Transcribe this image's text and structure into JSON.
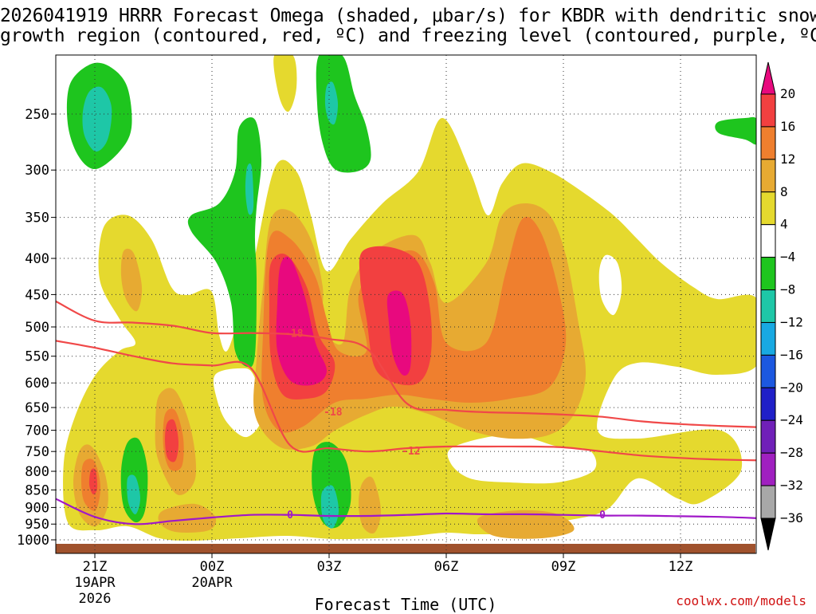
{
  "chart_data": {
    "type": "contour",
    "title_line1": "2026041919 HRRR Forecast Omega (shaded, μbar/s) for KBDR with dendritic snow",
    "title_line2": "growth region (contoured, red, ºC) and freezing level (contoured, purple, ºC)",
    "xlabel": "Forecast Time (UTC)",
    "ylabel": "",
    "y_axis": {
      "unit": "hPa",
      "ticks": [
        250,
        300,
        350,
        400,
        450,
        500,
        550,
        600,
        650,
        700,
        750,
        800,
        850,
        900,
        950,
        1000
      ],
      "range": [
        200,
        1025
      ]
    },
    "x_axis": {
      "unit": "hours since 2026041919",
      "range": [
        0,
        18
      ],
      "ticks": [
        {
          "hour": 2,
          "label": "21Z",
          "sub1": "19APR",
          "sub2": "2026"
        },
        {
          "hour": 5,
          "label": "00Z",
          "sub1": "20APR",
          "sub2": ""
        },
        {
          "hour": 8,
          "label": "03Z",
          "sub1": "",
          "sub2": ""
        },
        {
          "hour": 11,
          "label": "06Z",
          "sub1": "",
          "sub2": ""
        },
        {
          "hour": 14,
          "label": "09Z",
          "sub1": "",
          "sub2": ""
        },
        {
          "hour": 17,
          "label": "12Z",
          "sub1": "",
          "sub2": ""
        }
      ]
    },
    "colorbar": {
      "ticks": [
        "20",
        "16",
        "12",
        "8",
        "4",
        "−4",
        "−8",
        "−12",
        "−16",
        "−20",
        "−24",
        "−28",
        "−32",
        "−36"
      ],
      "colors": [
        "#e8097e",
        "#f24040",
        "#ef7f2e",
        "#e7aa32",
        "#e5d92e",
        "#ffffff",
        "#1ec51e",
        "#1ec7a7",
        "#18a9e2",
        "#1c58e0",
        "#2020c8",
        "#7020b8",
        "#a020c0",
        "#a8a8a8"
      ],
      "top_arrow_color": "#e8097e",
      "bottom_arrow_color": "#000000"
    },
    "omega_fields": [
      {
        "level": "+4 to +8",
        "color": "#e5d92e",
        "approx_region": "most of 350-1000 hPa, 20Z-13Z"
      },
      {
        "level": "+8 to +12",
        "color": "#e7aa32",
        "approx_region": "450-650 hPa, 00Z-08Z"
      },
      {
        "level": "+12 to +16",
        "color": "#ef7f2e",
        "approx_region": "370-680 hPa, 00Z-07Z"
      },
      {
        "level": "+16 to +20",
        "color": "#f24040",
        "approx_region": "400-620 hPa, 01Z-04Z"
      },
      {
        "level": ">+20",
        "color": "#e8097e",
        "approx_region": "420-610 hPa, 01Z and 04Z"
      },
      {
        "level": "-4 to -8",
        "color": "#1ec51e",
        "approx_region": "ascent-free pockets 200-450 hPa and 800-950 hPa"
      },
      {
        "level": "-8 to -12",
        "color": "#1ec7a7",
        "approx_region": "small cores"
      }
    ],
    "contours": [
      {
        "name": "dgz-upper",
        "series_label": "-18",
        "color": "#f04848",
        "unit": "ºC",
        "x": [
          0,
          1,
          2,
          3,
          4,
          5,
          6,
          7,
          8,
          9,
          10,
          11,
          12,
          13,
          14,
          15,
          16,
          17,
          18
        ],
        "y": [
          460,
          490,
          493,
          498,
          510,
          510,
          512,
          520,
          538,
          642,
          655,
          660,
          662,
          665,
          670,
          680,
          686,
          690,
          693
        ]
      },
      {
        "name": "dgz-lower",
        "series_label": "-12",
        "color": "#f04848",
        "unit": "ºC",
        "x": [
          0,
          1,
          2,
          3,
          4,
          5,
          6,
          7,
          8,
          9,
          10,
          11,
          12,
          13,
          14,
          15,
          16,
          17,
          18
        ],
        "y": [
          523,
          535,
          550,
          563,
          567,
          572,
          735,
          742,
          750,
          742,
          738,
          738,
          738,
          740,
          750,
          760,
          766,
          770,
          772
        ]
      },
      {
        "name": "freezing-level",
        "series_label": "0",
        "color": "#a018c8",
        "unit": "ºC",
        "x": [
          0,
          1,
          2,
          3,
          4,
          5,
          6,
          7,
          8,
          9,
          10,
          11,
          12,
          13,
          14,
          15,
          16,
          17,
          18
        ],
        "y": [
          875,
          928,
          950,
          940,
          930,
          922,
          922,
          925,
          925,
          922,
          918,
          920,
          920,
          922,
          924,
          924,
          926,
          928,
          932
        ]
      }
    ],
    "contour_labels": [
      {
        "text": "-18",
        "x": 6.1,
        "y": 510,
        "color": "#f04848"
      },
      {
        "text": "-18",
        "x": 7.1,
        "y": 658,
        "color": "#f04848"
      },
      {
        "text": "-12",
        "x": 9.1,
        "y": 748,
        "color": "#f04848"
      },
      {
        "text": "0",
        "x": 6.0,
        "y": 920,
        "color": "#a018c8"
      },
      {
        "text": "0",
        "x": 14.0,
        "y": 920,
        "color": "#a018c8"
      }
    ],
    "surface_color": "#a0522d",
    "credit": "coolwx.com/models"
  }
}
